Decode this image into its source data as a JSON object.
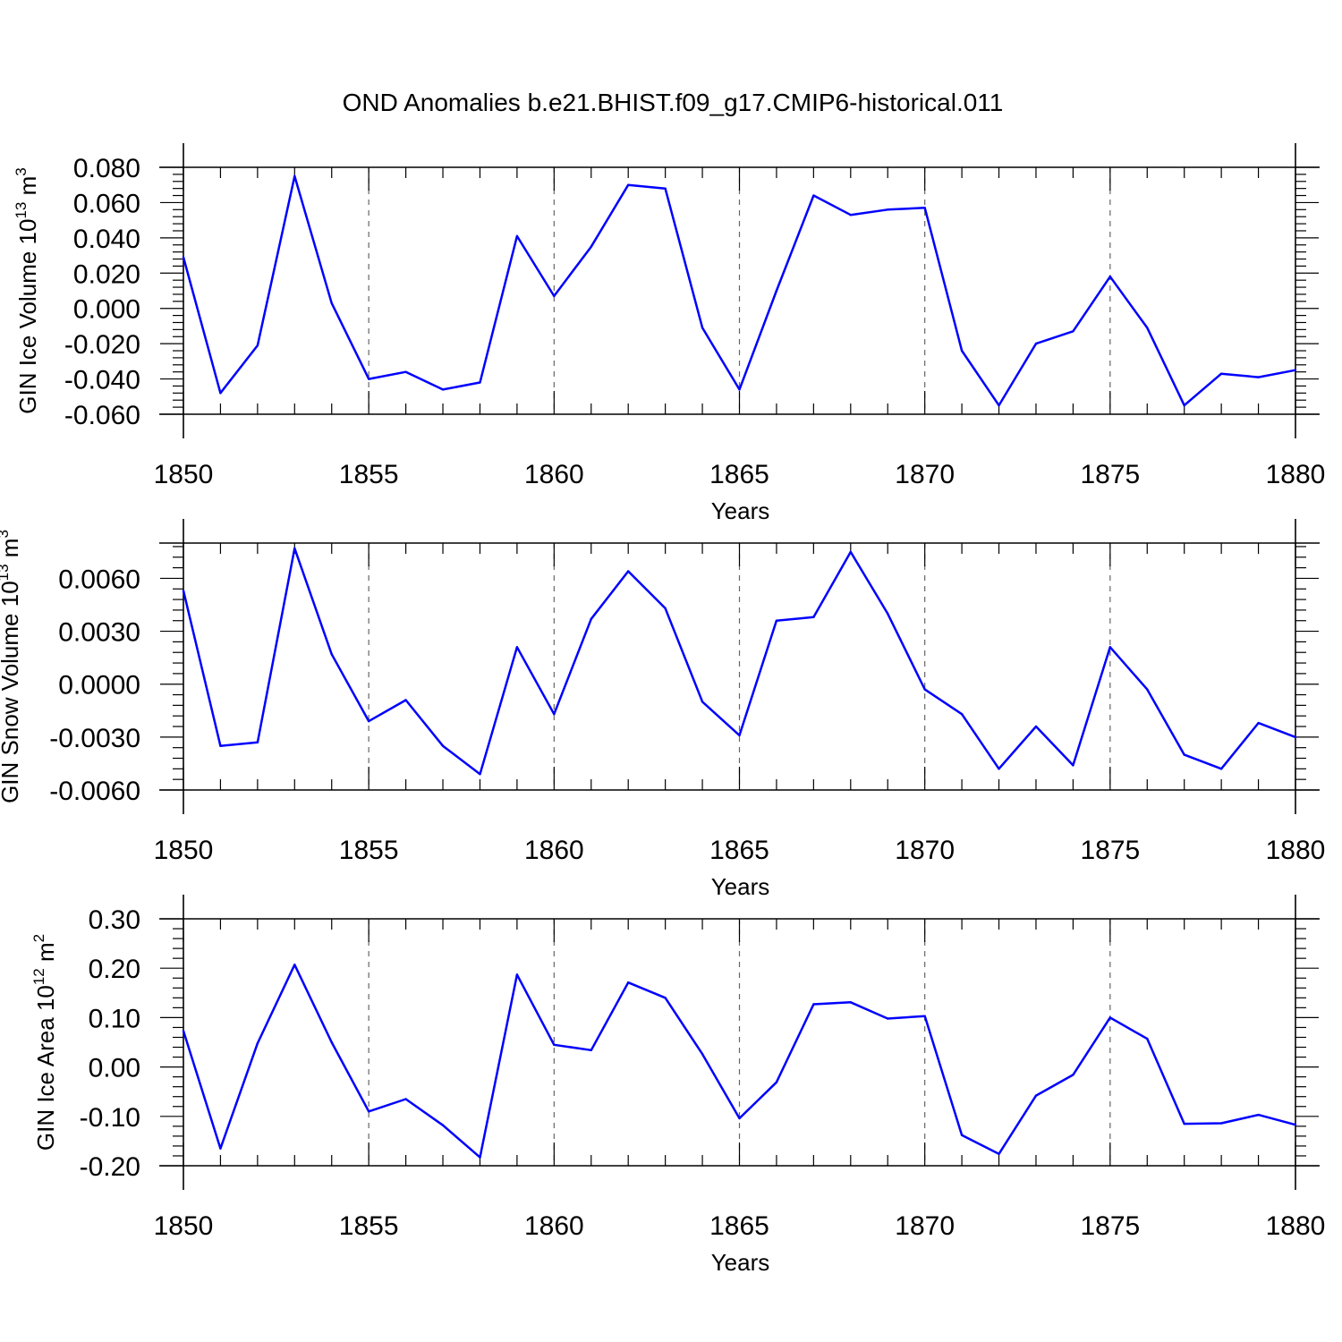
{
  "figure": {
    "title": "OND Anomalies b.e21.BHIST.f09_g17.CMIP6-historical.011",
    "line_color": "#0000ff"
  },
  "chart_data": [
    {
      "type": "line",
      "title": "",
      "xlabel": "Years",
      "ylabel": "GIN Ice Volume 10",
      "ylabel_exp": "13",
      "ylabel_unit": "m",
      "ylabel_unit_exp": "3",
      "xlim": [
        1850,
        1880
      ],
      "ylim": [
        -0.06,
        0.08
      ],
      "xticks": [
        1850,
        1855,
        1860,
        1865,
        1870,
        1875,
        1880
      ],
      "xtick_labels": [
        "1850",
        "1855",
        "1860",
        "1865",
        "1870",
        "1875",
        "1880"
      ],
      "yticks": [
        -0.06,
        -0.04,
        -0.02,
        0.0,
        0.02,
        0.04,
        0.06,
        0.08
      ],
      "ytick_labels": [
        "-0.060",
        "-0.040",
        "-0.020",
        "0.000",
        "0.020",
        "0.040",
        "0.060",
        "0.080"
      ],
      "ygrid": false,
      "xgrid": true,
      "x": [
        1850,
        1851,
        1852,
        1853,
        1854,
        1855,
        1856,
        1857,
        1858,
        1859,
        1860,
        1861,
        1862,
        1863,
        1864,
        1865,
        1866,
        1867,
        1868,
        1869,
        1870,
        1871,
        1872,
        1873,
        1874,
        1875,
        1876,
        1877,
        1878,
        1879,
        1880
      ],
      "values": [
        0.029,
        -0.048,
        -0.021,
        0.075,
        0.003,
        -0.04,
        -0.036,
        -0.046,
        -0.042,
        0.041,
        0.007,
        0.035,
        0.07,
        0.068,
        -0.011,
        -0.046,
        0.01,
        0.064,
        0.053,
        0.056,
        0.057,
        -0.024,
        -0.055,
        -0.02,
        -0.013,
        0.018,
        -0.011,
        -0.055,
        -0.037,
        -0.039,
        -0.035
      ]
    },
    {
      "type": "line",
      "title": "",
      "xlabel": "Years",
      "ylabel": "GIN Snow Volume 10",
      "ylabel_exp": "13",
      "ylabel_unit": "m",
      "ylabel_unit_exp": "3",
      "xlim": [
        1850,
        1880
      ],
      "ylim": [
        -0.006,
        0.008
      ],
      "xticks": [
        1850,
        1855,
        1860,
        1865,
        1870,
        1875,
        1880
      ],
      "xtick_labels": [
        "1850",
        "1855",
        "1860",
        "1865",
        "1870",
        "1875",
        "1880"
      ],
      "yticks": [
        -0.006,
        -0.003,
        0.0,
        0.003,
        0.006
      ],
      "ytick_labels": [
        "-0.0060",
        "-0.0030",
        "0.0000",
        "0.0030",
        "0.0060"
      ],
      "ygrid": false,
      "xgrid": true,
      "x": [
        1850,
        1851,
        1852,
        1853,
        1854,
        1855,
        1856,
        1857,
        1858,
        1859,
        1860,
        1861,
        1862,
        1863,
        1864,
        1865,
        1866,
        1867,
        1868,
        1869,
        1870,
        1871,
        1872,
        1873,
        1874,
        1875,
        1876,
        1877,
        1878,
        1879,
        1880
      ],
      "values": [
        0.0053,
        -0.0035,
        -0.0033,
        0.0077,
        0.0017,
        -0.0021,
        -0.0009,
        -0.0035,
        -0.0051,
        0.0021,
        -0.0017,
        0.0037,
        0.0064,
        0.0043,
        -0.001,
        -0.0029,
        0.0036,
        0.0038,
        0.0075,
        0.004,
        -0.0003,
        -0.0017,
        -0.0048,
        -0.0024,
        -0.0046,
        0.0021,
        -0.0003,
        -0.004,
        -0.0048,
        -0.0022,
        -0.003
      ]
    },
    {
      "type": "line",
      "title": "",
      "xlabel": "Years",
      "ylabel": "GIN Ice Area 10",
      "ylabel_exp": "12",
      "ylabel_unit": "m",
      "ylabel_unit_exp": "2",
      "xlim": [
        1850,
        1880
      ],
      "ylim": [
        -0.2,
        0.3
      ],
      "xticks": [
        1850,
        1855,
        1860,
        1865,
        1870,
        1875,
        1880
      ],
      "xtick_labels": [
        "1850",
        "1855",
        "1860",
        "1865",
        "1870",
        "1875",
        "1880"
      ],
      "yticks": [
        -0.2,
        -0.1,
        0.0,
        0.1,
        0.2,
        0.3
      ],
      "ytick_labels": [
        "-0.20",
        "-0.10",
        "0.00",
        "0.10",
        "0.20",
        "0.30"
      ],
      "ygrid": false,
      "xgrid": true,
      "x": [
        1850,
        1851,
        1852,
        1853,
        1854,
        1855,
        1856,
        1857,
        1858,
        1859,
        1860,
        1861,
        1862,
        1863,
        1864,
        1865,
        1866,
        1867,
        1868,
        1869,
        1870,
        1871,
        1872,
        1873,
        1874,
        1875,
        1876,
        1877,
        1878,
        1879,
        1880
      ],
      "values": [
        0.073,
        -0.165,
        0.048,
        0.207,
        0.05,
        -0.09,
        -0.065,
        -0.118,
        -0.183,
        0.187,
        0.045,
        0.034,
        0.171,
        0.14,
        0.026,
        -0.104,
        -0.031,
        0.127,
        0.131,
        0.098,
        0.103,
        -0.138,
        -0.176,
        -0.058,
        -0.016,
        0.1,
        0.057,
        -0.115,
        -0.114,
        -0.097,
        -0.117
      ]
    }
  ]
}
